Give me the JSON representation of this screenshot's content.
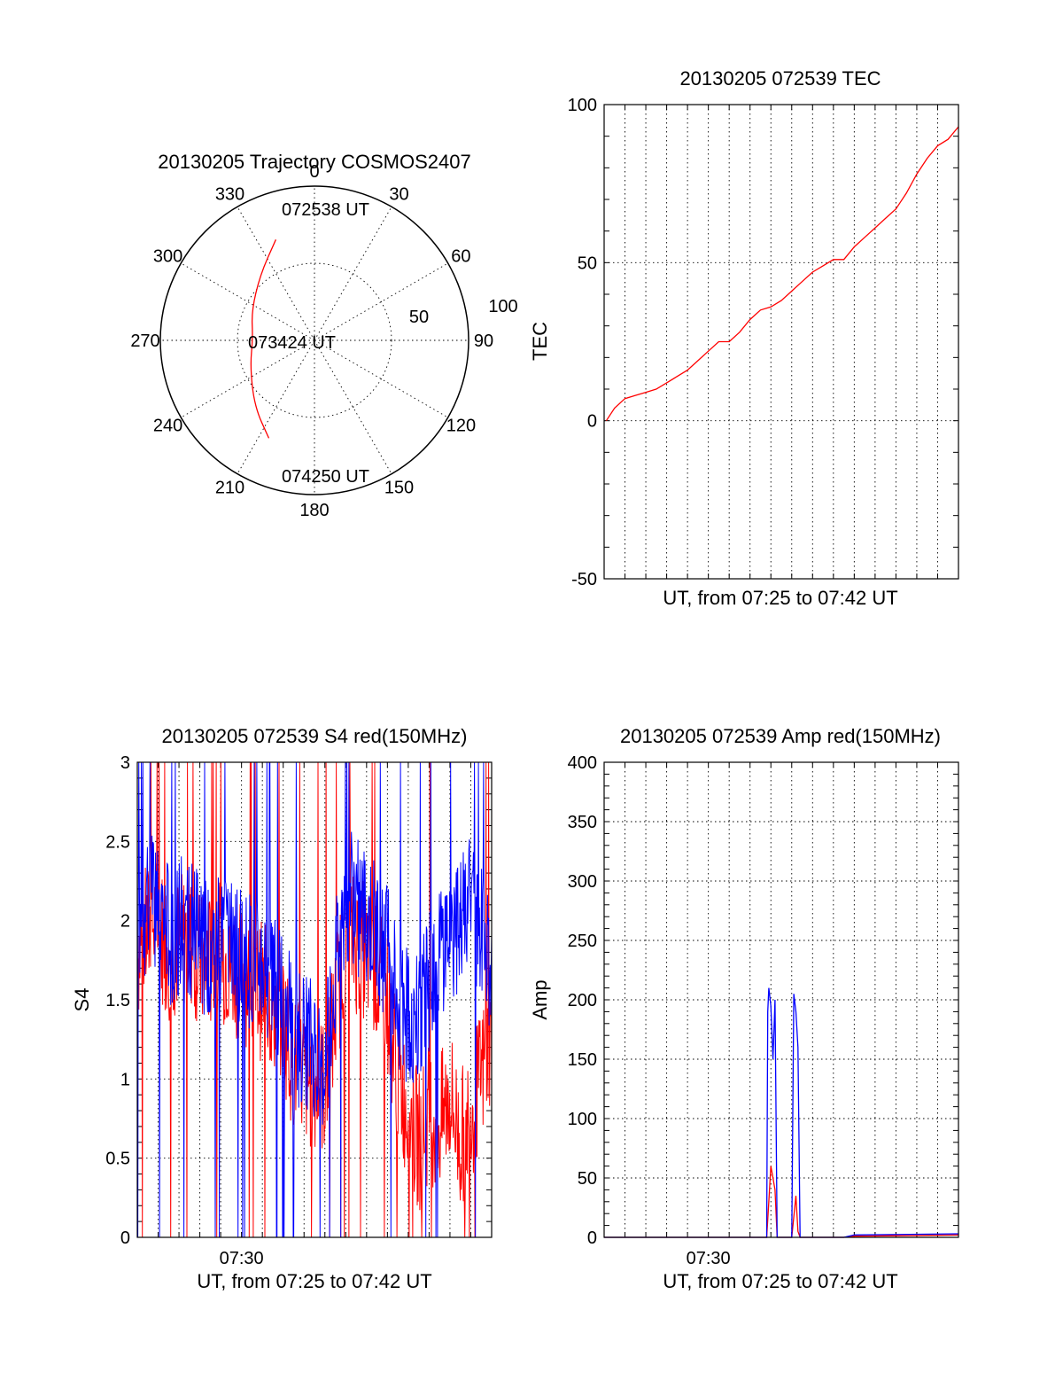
{
  "colors": {
    "red": "#ff0000",
    "blue": "#0000ff",
    "axis": "#000000"
  },
  "chart_data": [
    {
      "type": "polar",
      "title": "20130205 Trajectory COSMOS2407",
      "azimuth_labels": [
        "0",
        "30",
        "60",
        "90",
        "120",
        "150",
        "180",
        "210",
        "240",
        "270",
        "300",
        "330"
      ],
      "radial_labels": [
        "50",
        "100"
      ],
      "rlim": [
        0,
        100
      ],
      "grid": true,
      "series": [
        {
          "color": "#ff0000",
          "points": [
            {
              "az": 339,
              "r": 70
            },
            {
              "az": 320,
              "r": 55
            },
            {
              "az": 295,
              "r": 45
            },
            {
              "az": 272,
              "r": 40
            },
            {
              "az": 248,
              "r": 45
            },
            {
              "az": 222,
              "r": 58
            },
            {
              "az": 205,
              "r": 70
            }
          ]
        }
      ],
      "annotations": [
        "072538 UT",
        "073424 UT",
        "074250 UT"
      ]
    },
    {
      "type": "line",
      "title": "20130205 072539 TEC",
      "xlabel": "UT, from 07:25 to 07:42 UT",
      "ylabel": "TEC",
      "xlim": [
        0,
        17
      ],
      "ylim": [
        -50,
        100
      ],
      "yticks": [
        "-50",
        "0",
        "50",
        "100"
      ],
      "grid": true,
      "series": [
        {
          "color": "#ff0000",
          "x": [
            0.1,
            0.5,
            1.0,
            1.5,
            2.0,
            2.5,
            3.0,
            3.5,
            4.0,
            4.5,
            5.0,
            5.5,
            6.0,
            6.5,
            7.0,
            7.5,
            8.0,
            8.5,
            9.0,
            9.5,
            10.0,
            10.5,
            11.0,
            11.5,
            12.0,
            12.5,
            13.0,
            13.5,
            14.0,
            14.5,
            15.0,
            15.5,
            16.0,
            16.5,
            17.0
          ],
          "y": [
            0,
            4,
            7,
            8,
            9,
            10,
            12,
            14,
            16,
            19,
            22,
            25,
            25,
            28,
            32,
            35,
            36,
            38,
            41,
            44,
            47,
            49,
            51,
            51,
            55,
            58,
            61,
            64,
            67,
            72,
            78,
            83,
            87,
            89,
            93
          ]
        }
      ]
    },
    {
      "type": "line",
      "title": "20130205 072539 S4 red(150MHz)",
      "xlabel": "UT, from 07:25 to 07:42 UT",
      "ylabel": "S4",
      "xlim": [
        0,
        17
      ],
      "ylim": [
        0,
        3
      ],
      "yticks": [
        "0",
        "0.5",
        "1",
        "1.5",
        "2",
        "2.5",
        "3"
      ],
      "xticks": [
        {
          "x": 5,
          "label": "07:30"
        }
      ],
      "grid": true,
      "series": [
        {
          "color": "#ff0000",
          "x": [
            0.0,
            0.8,
            1.6,
            2.4,
            3.2,
            4.0,
            4.8,
            5.6,
            6.4,
            7.0,
            7.5,
            8.2,
            9.0,
            10.0,
            11.0,
            12.0,
            12.5,
            13.0,
            13.5,
            14.0,
            14.5,
            15.0,
            15.5,
            16.0,
            16.5,
            17.0
          ],
          "y": [
            1.8,
            2.0,
            1.8,
            1.9,
            1.7,
            1.8,
            1.7,
            1.6,
            1.5,
            1.4,
            1.1,
            1.0,
            0.95,
            1.9,
            1.8,
            1.5,
            1.0,
            0.8,
            0.6,
            0.8,
            0.7,
            0.9,
            0.6,
            0.8,
            1.0,
            1.3
          ]
        },
        {
          "color": "#0000ff",
          "x": [
            0.0,
            0.8,
            1.6,
            2.4,
            3.2,
            4.0,
            4.8,
            5.6,
            6.4,
            7.0,
            7.5,
            8.2,
            9.0,
            10.0,
            11.0,
            12.0,
            12.5,
            13.0,
            13.5,
            14.0,
            14.5,
            15.0,
            15.5,
            16.0,
            16.5,
            17.0
          ],
          "y": [
            2.0,
            2.1,
            1.9,
            2.0,
            1.8,
            1.9,
            1.8,
            1.7,
            1.7,
            1.5,
            1.3,
            1.2,
            1.1,
            2.2,
            2.0,
            1.8,
            1.5,
            1.4,
            1.4,
            1.6,
            1.8,
            1.9,
            2.0,
            2.1,
            1.9,
            1.7
          ]
        }
      ]
    },
    {
      "type": "line",
      "title": "20130205 072539 Amp red(150MHz)",
      "xlabel": "UT, from 07:25 to 07:42 UT",
      "ylabel": "Amp",
      "xlim": [
        0,
        17
      ],
      "ylim": [
        0,
        400
      ],
      "yticks": [
        "0",
        "50",
        "100",
        "150",
        "200",
        "250",
        "300",
        "350",
        "400"
      ],
      "xticks": [
        {
          "x": 5,
          "label": "07:30"
        }
      ],
      "grid": true,
      "series": [
        {
          "color": "#ff0000",
          "x": [
            0,
            7.8,
            7.9,
            8.0,
            8.1,
            8.2,
            8.3,
            9.0,
            9.2,
            9.3,
            9.4,
            11.5,
            12.0,
            17.0
          ],
          "y": [
            0,
            0,
            30,
            60,
            50,
            40,
            0,
            0,
            35,
            5,
            0,
            0,
            1,
            2
          ]
        },
        {
          "color": "#0000ff",
          "x": [
            0,
            7.8,
            7.85,
            7.9,
            8.0,
            8.1,
            8.2,
            8.3,
            9.0,
            9.1,
            9.2,
            9.3,
            9.4,
            11.5,
            12.0,
            17.0
          ],
          "y": [
            0,
            0,
            190,
            210,
            195,
            150,
            200,
            0,
            0,
            205,
            190,
            160,
            0,
            0,
            2,
            3
          ]
        }
      ]
    }
  ]
}
